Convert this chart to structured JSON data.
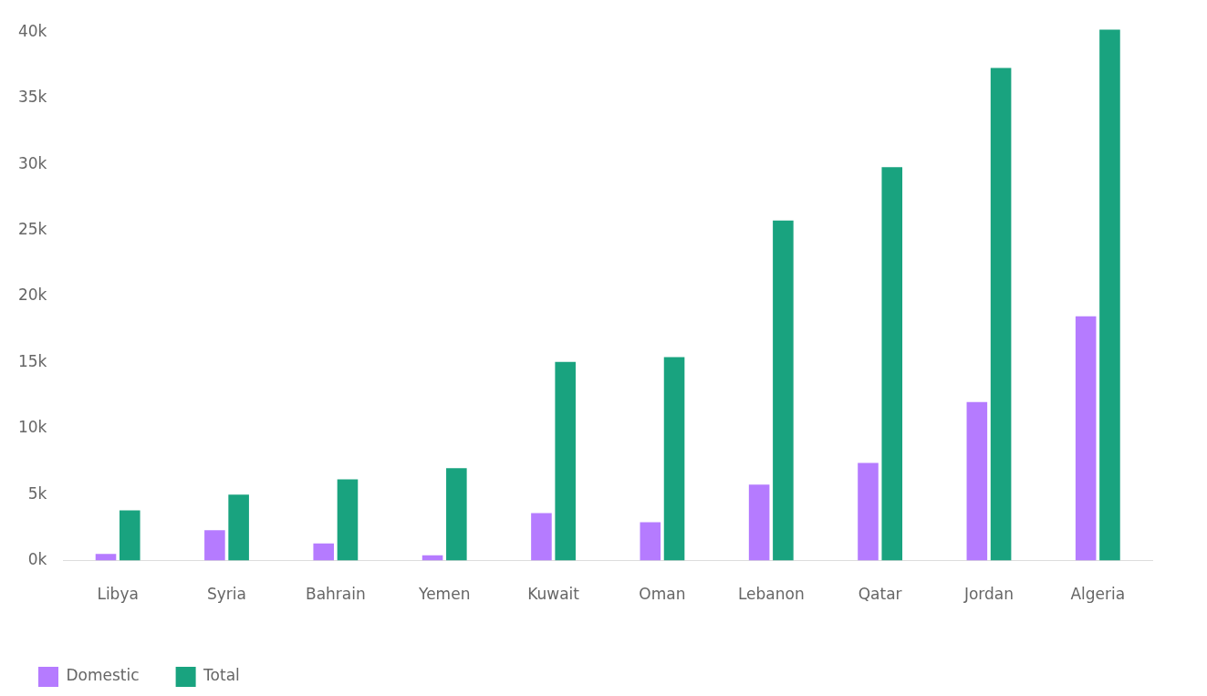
{
  "chart_data": {
    "type": "bar",
    "categories": [
      "Libya",
      "Syria",
      "Bahrain",
      "Yemen",
      "Kuwait",
      "Oman",
      "Lebanon",
      "Qatar",
      "Jordan",
      "Algeria"
    ],
    "series": [
      {
        "name": "Domestic",
        "color": "#b57bff",
        "values": [
          500,
          2300,
          1300,
          400,
          3600,
          2900,
          5750,
          7400,
          12000,
          18500
        ]
      },
      {
        "name": "Total",
        "color": "#19a37f",
        "values": [
          3800,
          5000,
          6150,
          7000,
          15050,
          15400,
          25750,
          29800,
          37300,
          40200
        ]
      }
    ],
    "ylim": [
      0,
      40500
    ],
    "yticks": [
      {
        "value": 0,
        "label": "0k"
      },
      {
        "value": 5000,
        "label": "5k"
      },
      {
        "value": 10000,
        "label": "10k"
      },
      {
        "value": 15000,
        "label": "15k"
      },
      {
        "value": 20000,
        "label": "20k"
      },
      {
        "value": 25000,
        "label": "25k"
      },
      {
        "value": 30000,
        "label": "30k"
      },
      {
        "value": 35000,
        "label": "35k"
      },
      {
        "value": 40000,
        "label": "40k"
      }
    ],
    "grid": false,
    "legend": "bottom left"
  }
}
